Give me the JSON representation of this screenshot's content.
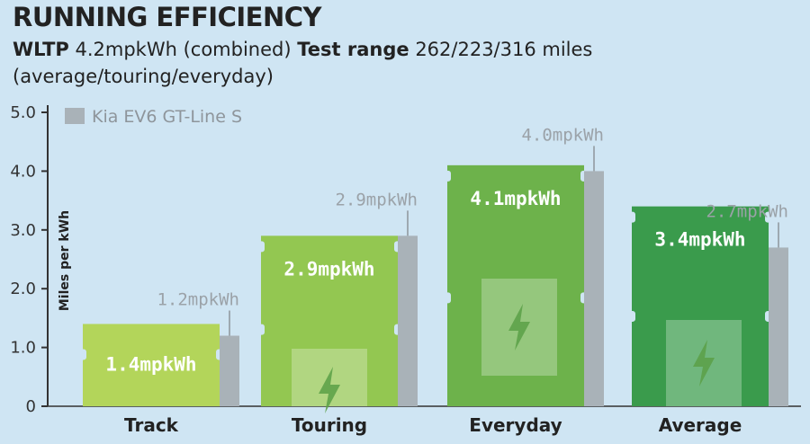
{
  "header": {
    "title": "RUNNING EFFICIENCY",
    "wltp_label": "WLTP",
    "wltp_value": "4.2mpkWh (combined)",
    "range_label": "Test range",
    "range_value": "262/223/316 miles",
    "range_note": "(average/touring/everyday)"
  },
  "chart_data": {
    "type": "bar",
    "categories": [
      "Track",
      "Touring",
      "Everyday",
      "Average"
    ],
    "ylabel": "Miles per kWh",
    "ylim": [
      0,
      5.0
    ],
    "yticks": [
      "0",
      "1.0",
      "2.0",
      "3.0",
      "4.0",
      "5.0"
    ],
    "ytick_values": [
      0,
      1,
      2,
      3,
      4,
      5
    ],
    "series": [
      {
        "values": [
          1.4,
          2.9,
          4.1,
          3.4
        ],
        "labels": [
          "1.4mpkWh",
          "2.9mpkWh",
          "4.1mpkWh",
          "3.4mpkWh"
        ],
        "colors": [
          "#b3d55a",
          "#93c751",
          "#6db24b",
          "#3a9b4c"
        ]
      },
      {
        "name": "Kia EV6 GT-Line S",
        "values": [
          1.2,
          2.9,
          4.0,
          2.7
        ],
        "labels": [
          "1.2mpkWh",
          "2.9mpkWh",
          "4.0mpkWh",
          "2.7mpkWh"
        ],
        "color": "#a9b2b8"
      }
    ],
    "legend_position": "top-left"
  }
}
